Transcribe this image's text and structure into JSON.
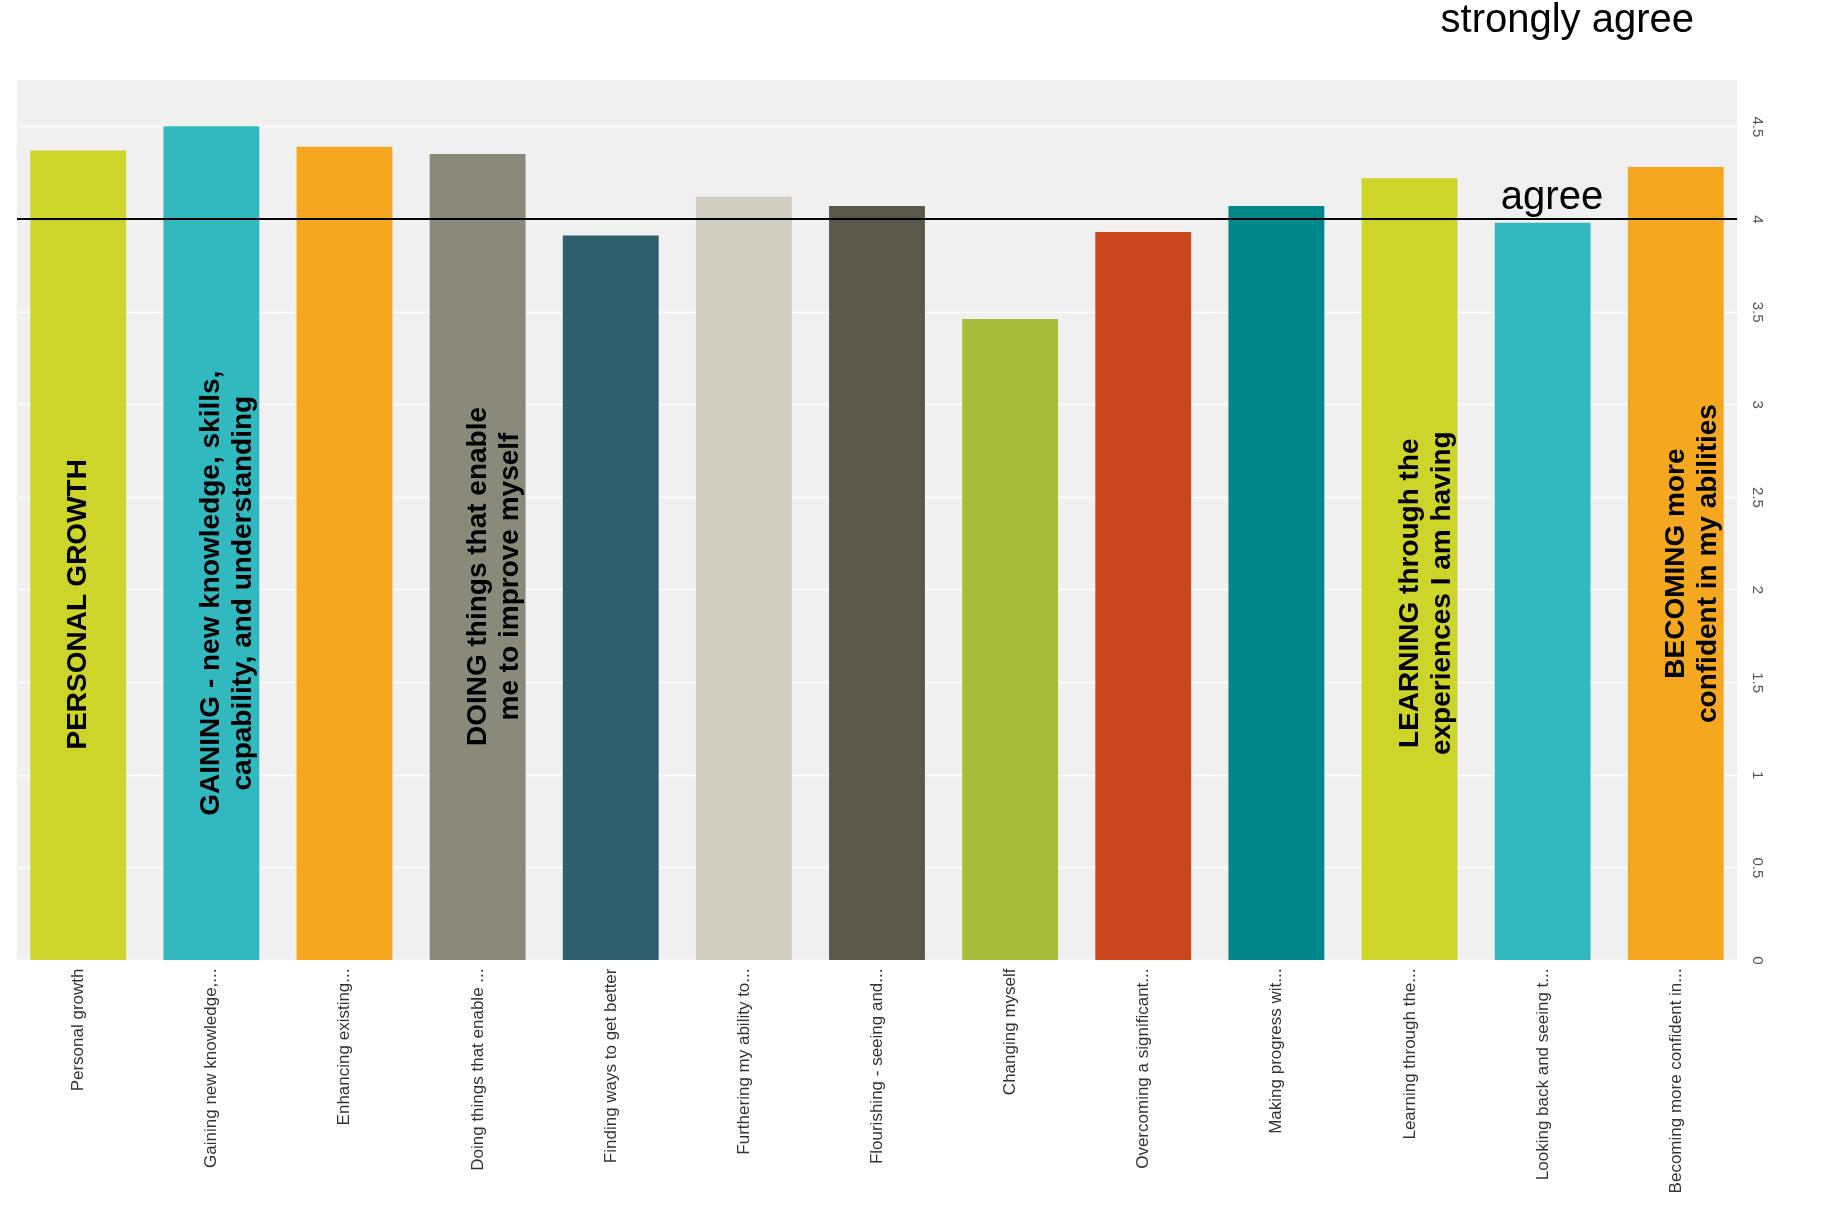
{
  "chart_data": {
    "type": "bar",
    "categories": [
      "Personal growth",
      "Gaining new knowledge,...",
      "Enhancing existing...",
      "Doing things that enable ...",
      "Finding ways to get better",
      "Furthering my ability to...",
      "Flourishing - seeing and...",
      "Changing myself",
      "Overcoming a significant...",
      "Making progress wit...",
      "Learning through the...",
      "Looking back and seeing t...",
      "Becoming more confident in..."
    ],
    "values": [
      4.37,
      4.5,
      4.39,
      4.35,
      3.91,
      4.12,
      4.07,
      3.46,
      3.93,
      4.07,
      4.22,
      3.98,
      4.28
    ],
    "colors": [
      "#cdd52a",
      "#32b9c0",
      "#f5a81f",
      "#8a8a7a",
      "#2e5e6b",
      "#d0cec0",
      "#5a584a",
      "#a7bd3a",
      "#c9461e",
      "#00878a",
      "#cdd52a",
      "#32b9c0",
      "#f5a81f"
    ],
    "ylim": [
      0,
      4.75
    ],
    "yticks": [
      0,
      0.5,
      1,
      1.5,
      2,
      2.5,
      3,
      3.5,
      4,
      4.5
    ],
    "grid": "y",
    "ref_lines": [
      {
        "axis": "y",
        "value": 4,
        "label": "agree",
        "color": "#000000"
      }
    ],
    "annotations": [
      "strongly agree",
      "PERSONAL GROWTH",
      "GAINING  - new knowledge, skills,\ncapability, and understanding",
      "DOING things that enable\nme to improve myself",
      "LEARNING through the\nexperiences I am having",
      "BECOMING more\nconfident in my abilities"
    ]
  }
}
